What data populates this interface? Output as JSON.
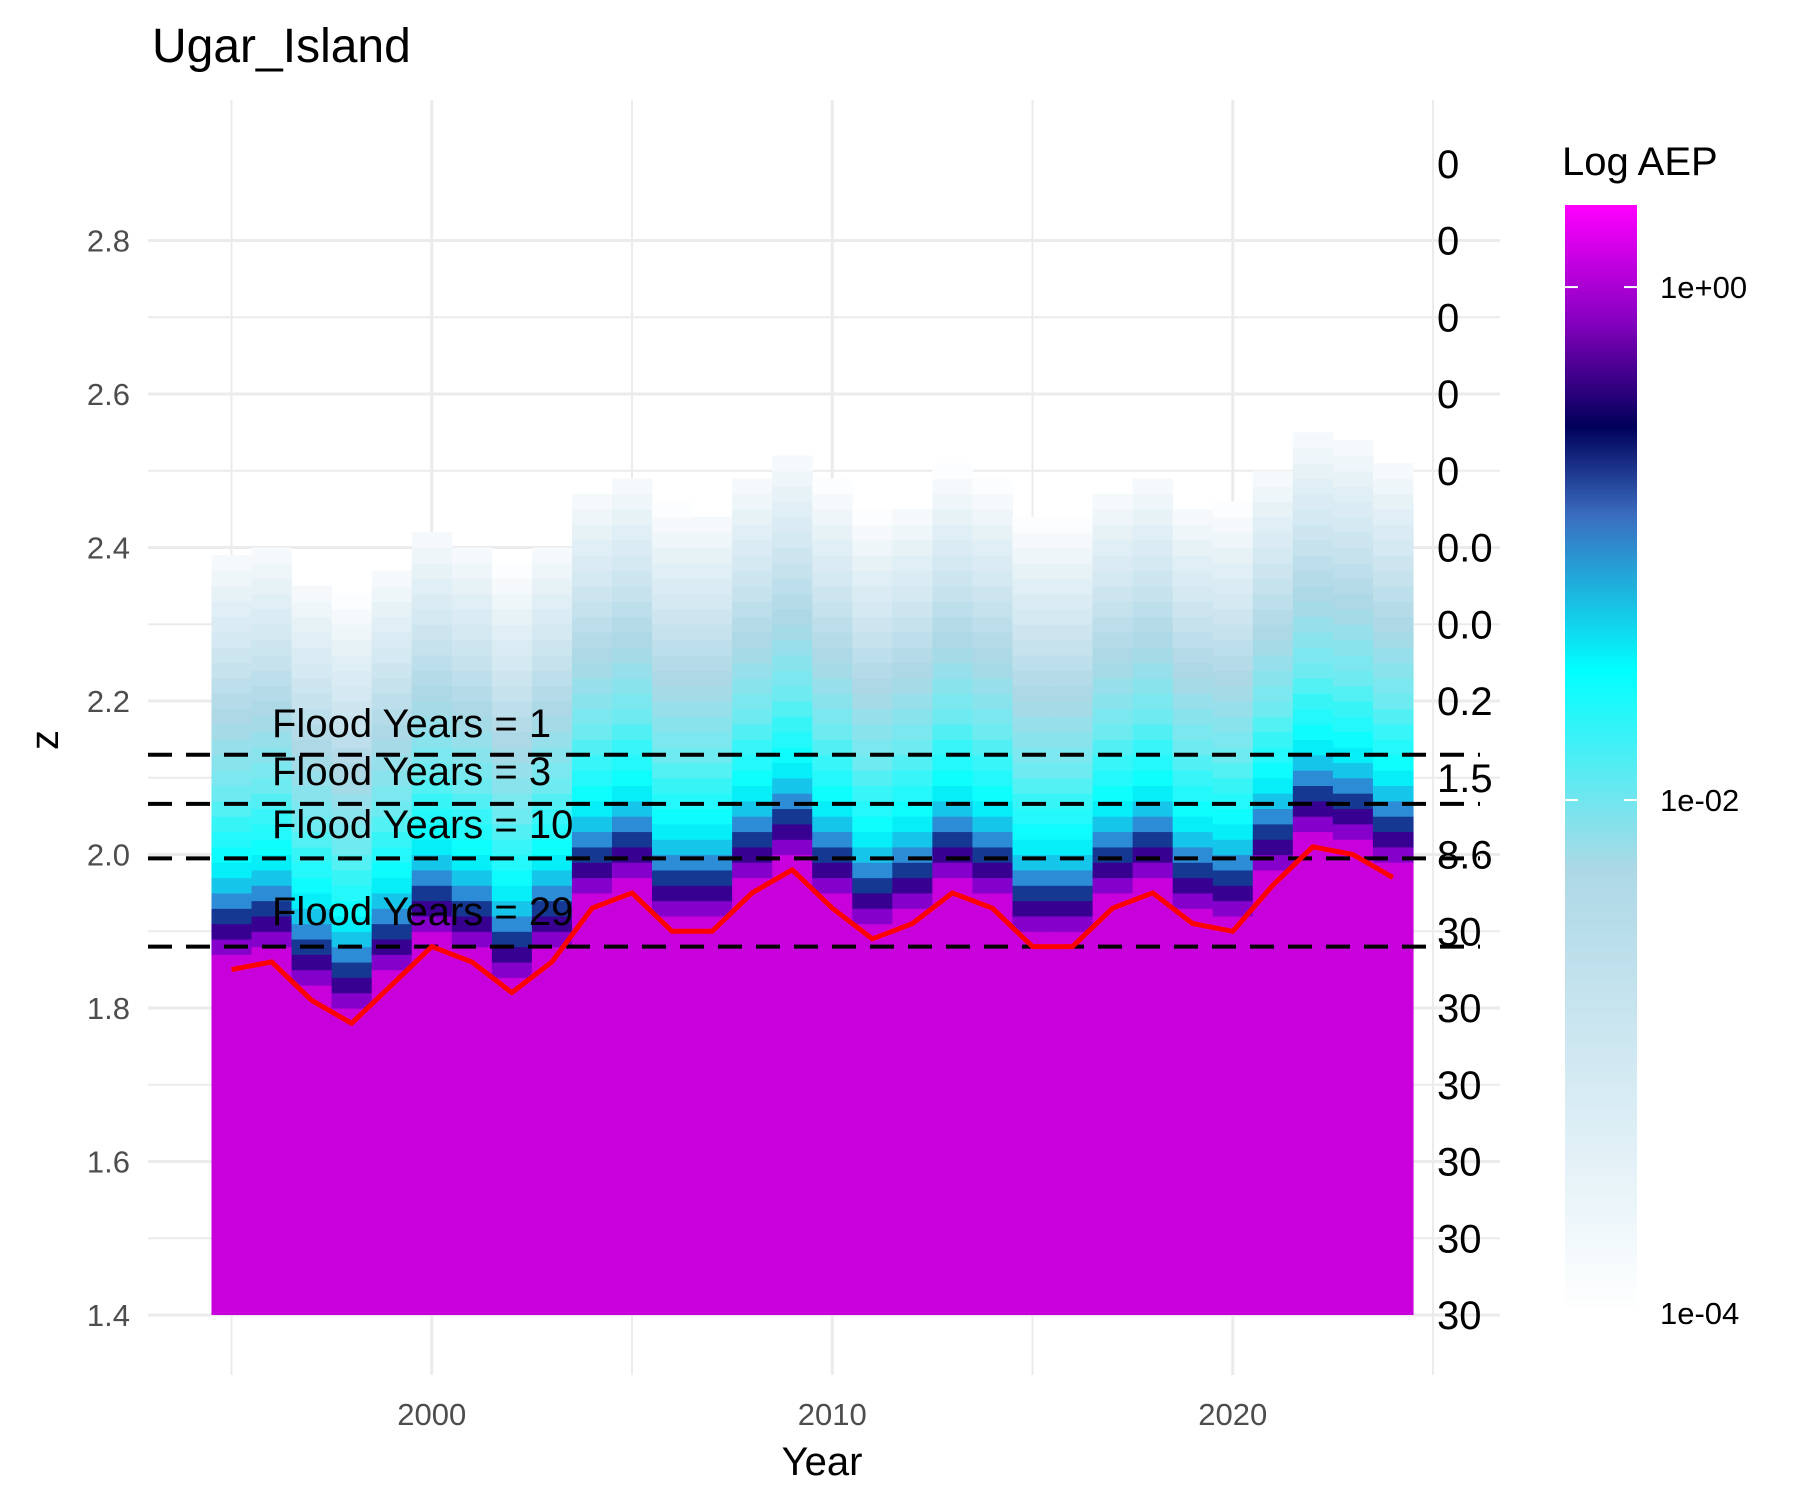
{
  "chart_data": {
    "type": "heatmap",
    "title": "Ugar_Island",
    "xlabel": "Year",
    "ylabel": "z",
    "xlim": [
      1994.5,
      2024.5
    ],
    "ylim": [
      1.4,
      2.9
    ],
    "x_ticks": [
      2000,
      2010,
      2020
    ],
    "y_ticks": [
      1.4,
      1.6,
      1.8,
      2.0,
      2.2,
      2.4,
      2.6,
      2.8
    ],
    "grid": true,
    "legend_position": "right",
    "colors": {
      "line": "#ff0000",
      "high": "#ff00ff",
      "mid_high": "#c800dc",
      "mid": "#00005a",
      "mid_low": "#00ffff",
      "low_mid": "#add8e6",
      "low": "#ffffff"
    },
    "legend": {
      "title": "Log AEP",
      "ticks": [
        "1e+00",
        "1e-02",
        "1e-04"
      ],
      "scale": "log"
    },
    "right_axis": {
      "z": [
        2.9,
        2.8,
        2.7,
        2.6,
        2.5,
        2.4,
        2.3,
        2.2,
        2.1,
        2.0,
        1.9,
        1.8,
        1.7,
        1.6,
        1.5,
        1.4
      ],
      "labels": [
        "0",
        "0",
        "0",
        "0",
        "0",
        "0.0",
        "0.0",
        "0.2",
        "1.5",
        "8.6",
        "30",
        "30",
        "30",
        "30",
        "30",
        "30"
      ]
    },
    "flood_lines": [
      {
        "z": 2.13,
        "label": "Flood Years = 1"
      },
      {
        "z": 2.066,
        "label": "Flood Years = 3"
      },
      {
        "z": 1.995,
        "label": "Flood Years = 10"
      },
      {
        "z": 1.88,
        "label": "Flood Years = 29"
      }
    ],
    "series": [
      {
        "x": [
          1995,
          1996,
          1997,
          1998,
          1999,
          2000,
          2001,
          2002,
          2003,
          2004,
          2005,
          2006,
          2007,
          2008,
          2009,
          2010,
          2011,
          2012,
          2013,
          2014,
          2015,
          2016,
          2017,
          2018,
          2019,
          2020,
          2021,
          2022,
          2023,
          2024
        ],
        "values": [
          1.85,
          1.86,
          1.81,
          1.78,
          1.83,
          1.88,
          1.86,
          1.82,
          1.86,
          1.93,
          1.95,
          1.9,
          1.9,
          1.95,
          1.98,
          1.93,
          1.89,
          1.91,
          1.95,
          1.93,
          1.88,
          1.88,
          1.93,
          1.95,
          1.91,
          1.9,
          1.96,
          2.01,
          2.0,
          1.97
        ]
      }
    ],
    "heatmap": {
      "x": [
        1995,
        1996,
        1997,
        1998,
        1999,
        2000,
        2001,
        2002,
        2003,
        2004,
        2005,
        2006,
        2007,
        2008,
        2009,
        2010,
        2011,
        2012,
        2013,
        2014,
        2015,
        2016,
        2017,
        2018,
        2019,
        2020,
        2021,
        2022,
        2023,
        2024
      ],
      "z_step": 0.02,
      "top_extent": [
        2.39,
        2.4,
        2.34,
        2.33,
        2.36,
        2.41,
        2.4,
        2.38,
        2.4,
        2.47,
        2.49,
        2.45,
        2.44,
        2.49,
        2.51,
        2.48,
        2.44,
        2.45,
        2.5,
        2.48,
        2.44,
        2.44,
        2.47,
        2.49,
        2.45,
        2.46,
        2.49,
        2.55,
        2.54,
        2.51
      ],
      "log_aep_profile": {
        "offset_above_line": [
          0.0,
          0.03,
          0.06,
          0.09,
          0.12,
          0.15,
          0.18,
          0.22,
          0.26,
          0.3,
          0.36,
          0.42,
          0.5,
          0.6
        ],
        "log10_aep": [
          -0.2,
          -0.7,
          -1.3,
          -1.65,
          -1.85,
          -2.0,
          -2.1,
          -2.3,
          -2.6,
          -2.9,
          -3.2,
          -3.5,
          -3.8,
          -4.2
        ]
      }
    }
  }
}
